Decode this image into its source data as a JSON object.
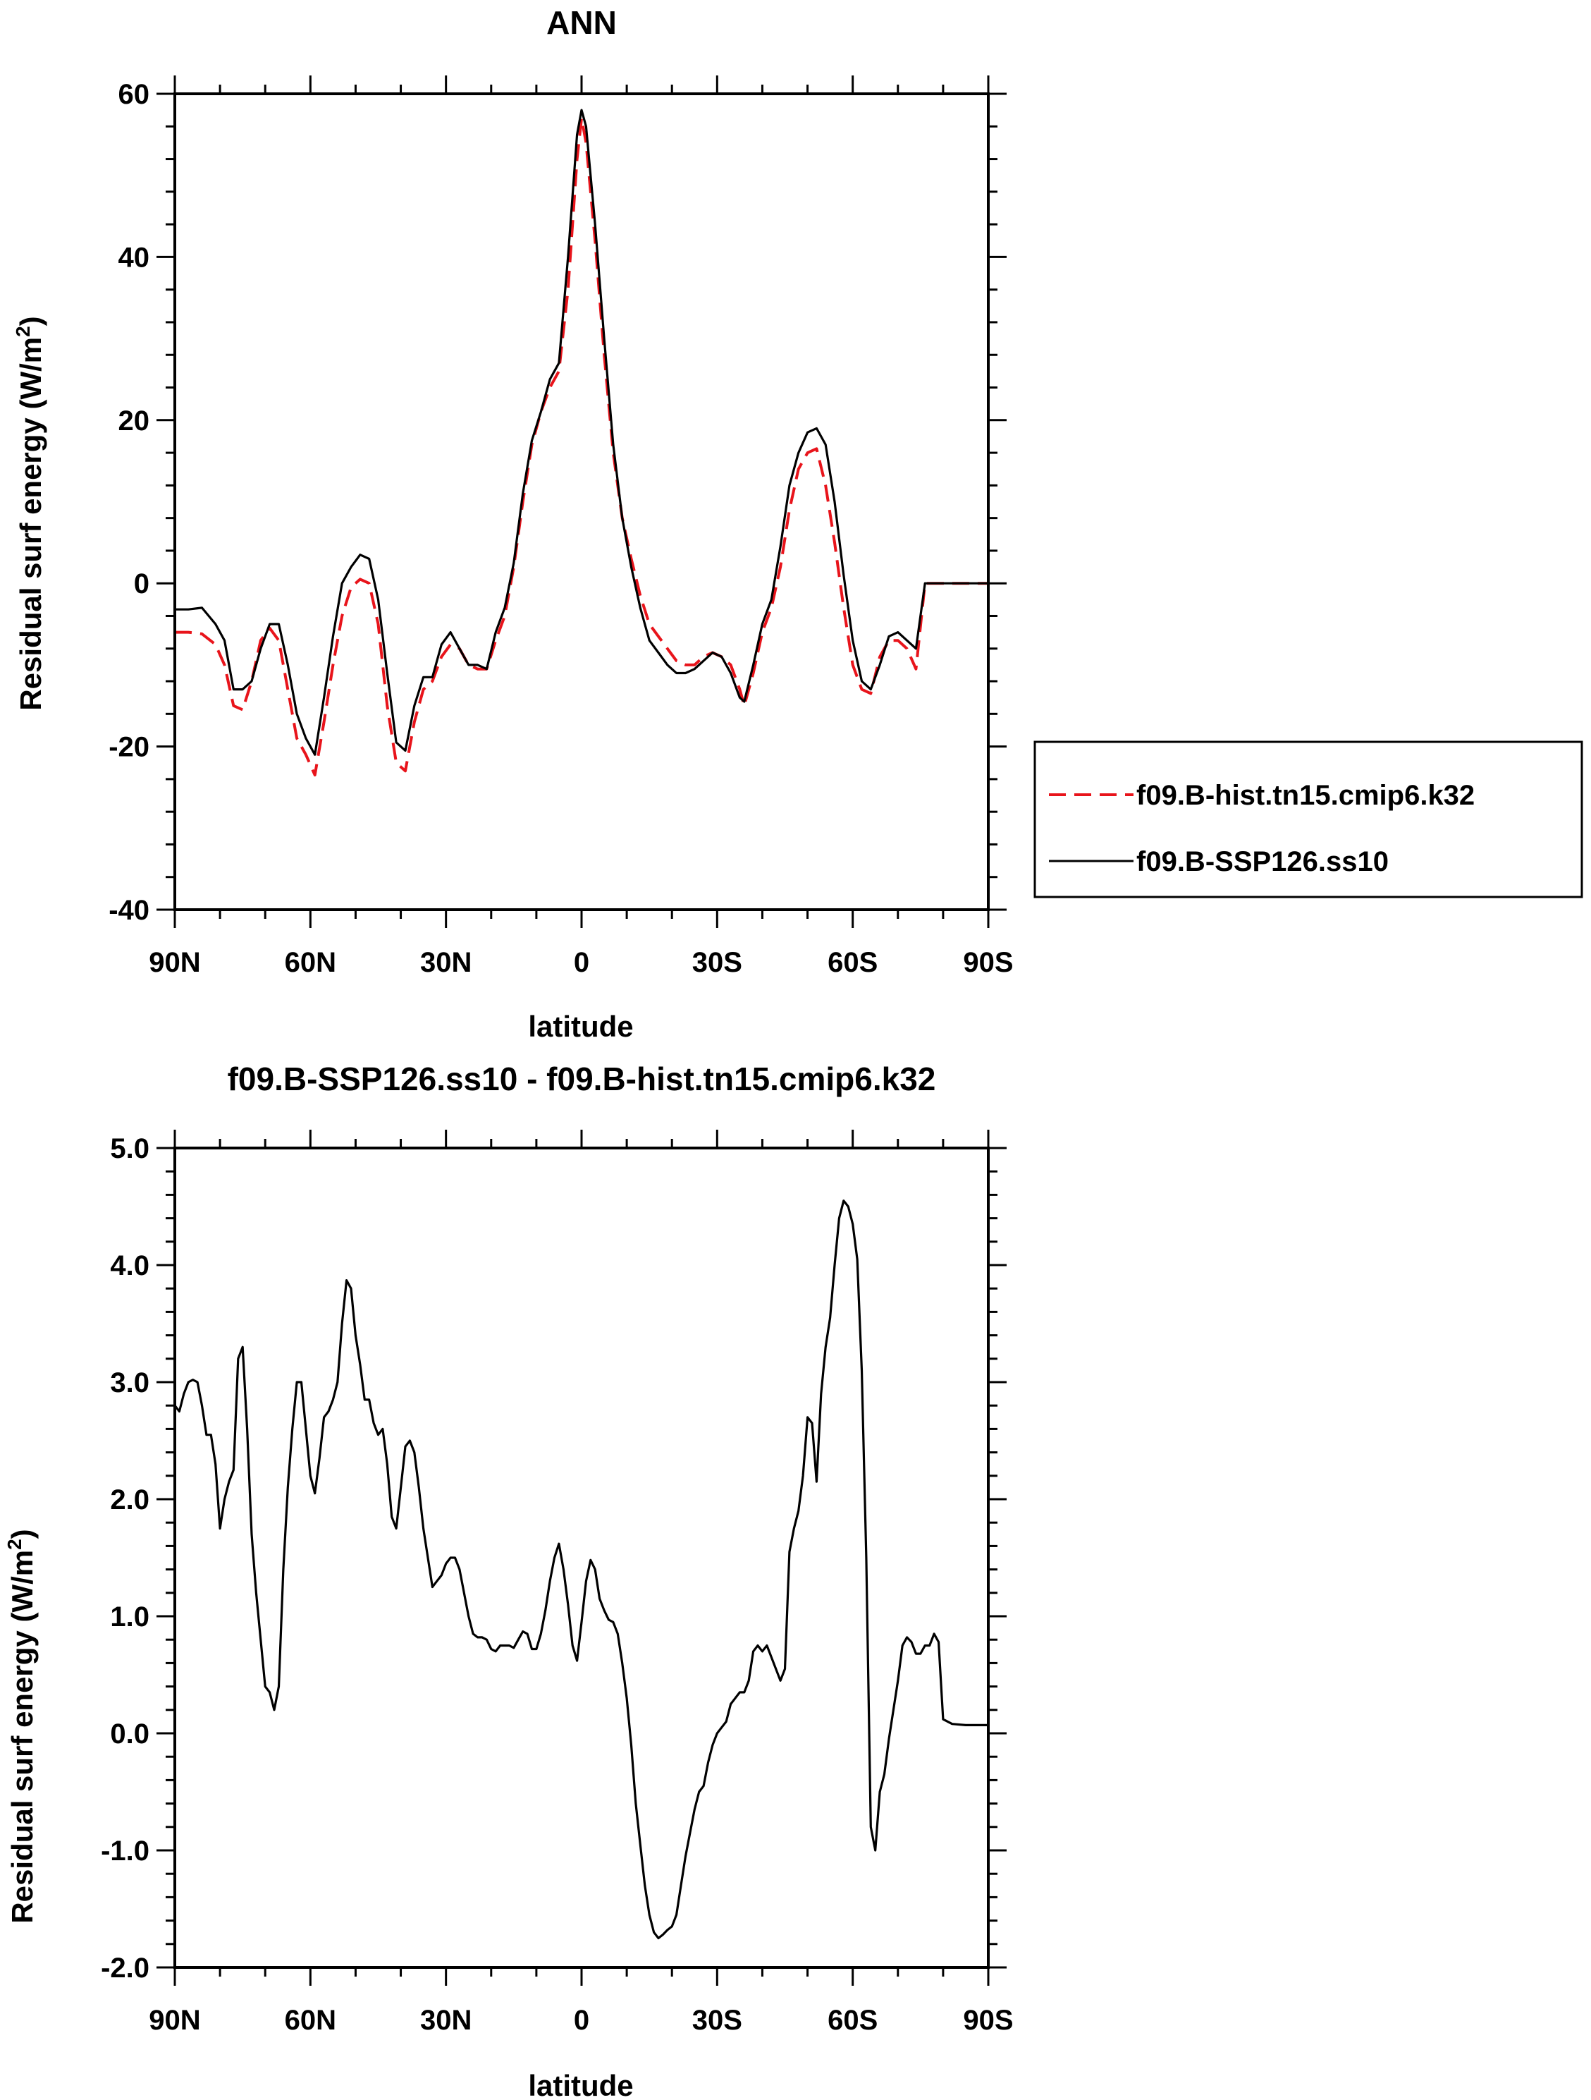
{
  "chart_data": [
    {
      "type": "line",
      "title": "ANN",
      "xlabel": "latitude",
      "ylabel": "Residual surf energy (W/m",
      "ylabel_sup": "2",
      "ylabel_end": ")",
      "xlim": [
        90,
        -90
      ],
      "ylim": [
        -40,
        60
      ],
      "x_ticks": [
        90,
        60,
        30,
        0,
        -30,
        -60,
        -90
      ],
      "x_tick_labels": [
        "90N",
        "60N",
        "30N",
        "0",
        "30S",
        "60S",
        "90S"
      ],
      "y_ticks": [
        -40,
        -20,
        0,
        20,
        40,
        60
      ],
      "y_tick_labels": [
        "-40",
        "-20",
        "0",
        "20",
        "40",
        "60"
      ],
      "legend_position": "right",
      "series": [
        {
          "name": "f09.B-hist.tn15.cmip6.k32",
          "color": "#e8141b",
          "dash": "dashed",
          "x": [
            90,
            87,
            84,
            81,
            79,
            77,
            75,
            73,
            71,
            69,
            67,
            65,
            63,
            61,
            59,
            57,
            55,
            53,
            51,
            49,
            47,
            45,
            43,
            41,
            39,
            37,
            35,
            33,
            31,
            29,
            27,
            25,
            23,
            21,
            19,
            17,
            15,
            13,
            11,
            9,
            7,
            5,
            3,
            1,
            0,
            -1,
            -3,
            -5,
            -7,
            -9,
            -11,
            -13,
            -15,
            -17,
            -19,
            -21,
            -23,
            -25,
            -27,
            -29,
            -31,
            -33,
            -35,
            -36,
            -38,
            -40,
            -42,
            -44,
            -46,
            -48,
            -50,
            -52,
            -54,
            -56,
            -58,
            -60,
            -62,
            -64,
            -66,
            -68,
            -70,
            -72,
            -74,
            -76,
            -78,
            -80,
            -82,
            -85,
            -88,
            -90
          ],
          "y": [
            -6,
            -6,
            -6.2,
            -7.5,
            -10,
            -15,
            -15.5,
            -12,
            -7,
            -5.5,
            -7,
            -13,
            -19,
            -21,
            -23.5,
            -17,
            -10,
            -4,
            -0.5,
            0.5,
            0,
            -5,
            -15,
            -22,
            -23,
            -17,
            -13,
            -12,
            -9,
            -7.5,
            -8,
            -10,
            -10.5,
            -10.5,
            -7,
            -4,
            2,
            10,
            17,
            21,
            24,
            26,
            36,
            52,
            57,
            54,
            42,
            28,
            16,
            8,
            3,
            -1.5,
            -5,
            -6.5,
            -8,
            -9.5,
            -10,
            -10,
            -9,
            -8.5,
            -9,
            -10,
            -13,
            -15,
            -11,
            -6,
            -3,
            2,
            9,
            14,
            16,
            16.5,
            12,
            5,
            -3,
            -10,
            -13,
            -13.5,
            -9,
            -7,
            -7,
            -8,
            -10.5,
            0,
            0,
            0,
            0,
            0,
            0,
            0
          ]
        },
        {
          "name": "f09.B-SSP126.ss10",
          "color": "#000000",
          "dash": "solid",
          "x": [
            90,
            87,
            84,
            81,
            79,
            77,
            75,
            73,
            71,
            69,
            67,
            65,
            63,
            61,
            59,
            57,
            55,
            53,
            51,
            49,
            47,
            45,
            43,
            41,
            39,
            37,
            35,
            33,
            31,
            29,
            27,
            25,
            23,
            21,
            19,
            17,
            15,
            13,
            11,
            9,
            7,
            5,
            3,
            1,
            0,
            -1,
            -3,
            -5,
            -7,
            -9,
            -11,
            -13,
            -15,
            -17,
            -19,
            -21,
            -23,
            -25,
            -27,
            -29,
            -31,
            -33,
            -35,
            -36,
            -38,
            -40,
            -42,
            -44,
            -46,
            -48,
            -50,
            -52,
            -54,
            -56,
            -58,
            -60,
            -62,
            -64,
            -66,
            -68,
            -70,
            -72,
            -74,
            -76,
            -78,
            -80,
            -82,
            -85,
            -88,
            -90
          ],
          "y": [
            -3.2,
            -3.2,
            -3,
            -5,
            -7,
            -13,
            -13,
            -12,
            -8,
            -5,
            -5,
            -10,
            -16,
            -19,
            -21,
            -14,
            -6.5,
            0,
            2,
            3.5,
            3,
            -2,
            -11,
            -19.5,
            -20.5,
            -15,
            -11.5,
            -11.5,
            -7.5,
            -6,
            -8,
            -10,
            -10,
            -10.5,
            -6,
            -3,
            2.5,
            11,
            17.5,
            21,
            25,
            27,
            40,
            55,
            58,
            56,
            44,
            30,
            17,
            8,
            2,
            -3,
            -7,
            -8.5,
            -10,
            -11,
            -11,
            -10.5,
            -9.5,
            -8.5,
            -9,
            -11,
            -14,
            -14.5,
            -10,
            -5,
            -2,
            4.5,
            12,
            16,
            18.5,
            19,
            17,
            10,
            1,
            -7,
            -12,
            -13,
            -10,
            -6.5,
            -6,
            -7,
            -8,
            0,
            0,
            0,
            0,
            0,
            0,
            0
          ]
        }
      ]
    },
    {
      "type": "line",
      "title": "f09.B-SSP126.ss10 - f09.B-hist.tn15.cmip6.k32",
      "xlabel": "latitude",
      "ylabel": "Residual surf energy (W/m",
      "ylabel_sup": "2",
      "ylabel_end": ")",
      "xlim": [
        90,
        -90
      ],
      "ylim": [
        -2.0,
        5.0
      ],
      "x_ticks": [
        90,
        60,
        30,
        0,
        -30,
        -60,
        -90
      ],
      "x_tick_labels": [
        "90N",
        "60N",
        "30N",
        "0",
        "30S",
        "60S",
        "90S"
      ],
      "y_ticks": [
        -2.0,
        -1.0,
        0.0,
        1.0,
        2.0,
        3.0,
        4.0,
        5.0
      ],
      "y_tick_labels": [
        "-2.0",
        "-1.0",
        "0.0",
        "1.0",
        "2.0",
        "3.0",
        "4.0",
        "5.0"
      ],
      "series": [
        {
          "color": "#000000",
          "dash": "solid",
          "x": [
            90,
            89,
            88,
            87,
            86,
            85,
            84,
            83,
            82,
            81,
            80,
            79,
            78,
            77,
            76,
            75,
            74,
            73,
            72,
            71,
            70,
            69,
            68,
            67,
            66,
            65,
            64,
            63,
            62,
            61,
            60,
            59,
            58,
            57,
            56,
            55,
            54,
            53,
            52,
            51,
            50,
            49,
            48,
            47,
            46,
            45,
            44,
            43,
            42,
            41,
            40,
            39,
            38,
            37,
            36,
            35,
            34,
            33,
            32,
            31,
            30,
            29,
            28,
            27,
            26,
            25,
            24,
            23,
            22,
            21,
            20,
            19,
            18,
            17,
            16,
            15,
            14,
            13,
            12,
            11,
            10,
            9,
            8,
            7,
            6,
            5,
            4,
            3,
            2,
            1,
            0,
            -1,
            -2,
            -3,
            -4,
            -5,
            -6,
            -7,
            -8,
            -9,
            -10,
            -11,
            -12,
            -13,
            -14,
            -15,
            -16,
            -17,
            -18,
            -19,
            -20,
            -21,
            -22,
            -23,
            -24,
            -25,
            -26,
            -27,
            -28,
            -29,
            -30,
            -31,
            -32,
            -33,
            -34,
            -35,
            -36,
            -37,
            -38,
            -39,
            -40,
            -41,
            -42,
            -43,
            -44,
            -45,
            -46,
            -47,
            -48,
            -49,
            -50,
            -51,
            -52,
            -53,
            -54,
            -55,
            -56,
            -57,
            -58,
            -59,
            -60,
            -61,
            -62,
            -63,
            -64,
            -65,
            -66,
            -67,
            -68,
            -69,
            -70,
            -71,
            -72,
            -73,
            -74,
            -75,
            -76,
            -77,
            -78,
            -79,
            -80,
            -82,
            -85,
            -88,
            -90
          ],
          "y": [
            2.8,
            2.75,
            2.9,
            3.0,
            3.02,
            3.0,
            2.8,
            2.55,
            2.55,
            2.3,
            1.75,
            2.0,
            2.15,
            2.25,
            3.2,
            3.3,
            2.6,
            1.7,
            1.2,
            0.8,
            0.4,
            0.35,
            0.2,
            0.4,
            1.4,
            2.1,
            2.6,
            3.0,
            3.0,
            2.6,
            2.2,
            2.05,
            2.35,
            2.7,
            2.75,
            2.85,
            3.0,
            3.5,
            3.87,
            3.8,
            3.4,
            3.15,
            2.85,
            2.85,
            2.65,
            2.55,
            2.6,
            2.3,
            1.85,
            1.75,
            2.1,
            2.45,
            2.5,
            2.4,
            2.1,
            1.75,
            1.5,
            1.25,
            1.3,
            1.35,
            1.45,
            1.5,
            1.5,
            1.4,
            1.2,
            1.0,
            0.85,
            0.82,
            0.82,
            0.8,
            0.72,
            0.7,
            0.75,
            0.75,
            0.75,
            0.73,
            0.8,
            0.87,
            0.85,
            0.72,
            0.72,
            0.85,
            1.05,
            1.3,
            1.5,
            1.62,
            1.4,
            1.1,
            0.75,
            0.62,
            0.95,
            1.3,
            1.48,
            1.4,
            1.15,
            1.05,
            0.97,
            0.95,
            0.85,
            0.6,
            0.3,
            -0.1,
            -0.6,
            -0.95,
            -1.3,
            -1.55,
            -1.7,
            -1.75,
            -1.72,
            -1.68,
            -1.65,
            -1.55,
            -1.3,
            -1.05,
            -0.85,
            -0.65,
            -0.5,
            -0.45,
            -0.25,
            -0.1,
            0.0,
            0.05,
            0.1,
            0.25,
            0.3,
            0.35,
            0.35,
            0.45,
            0.7,
            0.75,
            0.7,
            0.75,
            0.65,
            0.55,
            0.45,
            0.55,
            1.55,
            1.75,
            1.9,
            2.2,
            2.7,
            2.65,
            2.15,
            2.9,
            3.3,
            3.55,
            4.0,
            4.4,
            4.55,
            4.5,
            4.35,
            4.05,
            3.1,
            1.5,
            -0.8,
            -1.0,
            -0.5,
            -0.35,
            -0.05,
            0.2,
            0.45,
            0.75,
            0.82,
            0.78,
            0.68,
            0.68,
            0.75,
            0.75,
            0.85,
            0.78,
            0.12,
            0.08,
            0.07,
            0.07,
            0.07
          ]
        }
      ]
    }
  ]
}
